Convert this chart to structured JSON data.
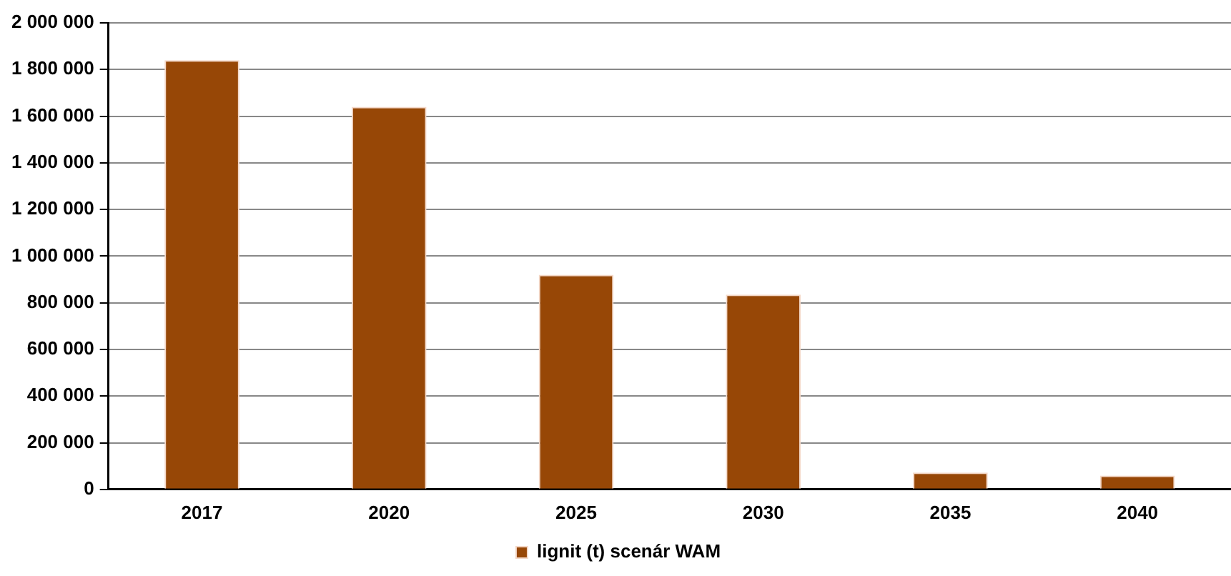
{
  "chart_data": {
    "type": "bar",
    "categories": [
      "2017",
      "2020",
      "2025",
      "2030",
      "2035",
      "2040"
    ],
    "series": [
      {
        "name": "lignit (t) scenár WAM",
        "color": "#974706",
        "values": [
          1840000,
          1640000,
          920000,
          835000,
          72000,
          59000
        ]
      }
    ],
    "ylim": [
      0,
      2000000
    ],
    "yticks": [
      {
        "value": 0,
        "label": "0"
      },
      {
        "value": 200000,
        "label": "200 000"
      },
      {
        "value": 400000,
        "label": "400 000"
      },
      {
        "value": 600000,
        "label": "600 000"
      },
      {
        "value": 800000,
        "label": "800 000"
      },
      {
        "value": 1000000,
        "label": "1 000 000"
      },
      {
        "value": 1200000,
        "label": "1 200 000"
      },
      {
        "value": 1400000,
        "label": "1 400 000"
      },
      {
        "value": 1600000,
        "label": "1 600 000"
      },
      {
        "value": 1800000,
        "label": "1 800 000"
      },
      {
        "value": 2000000,
        "label": "2 000 000"
      }
    ],
    "grid": "y",
    "legend": "bottom"
  }
}
